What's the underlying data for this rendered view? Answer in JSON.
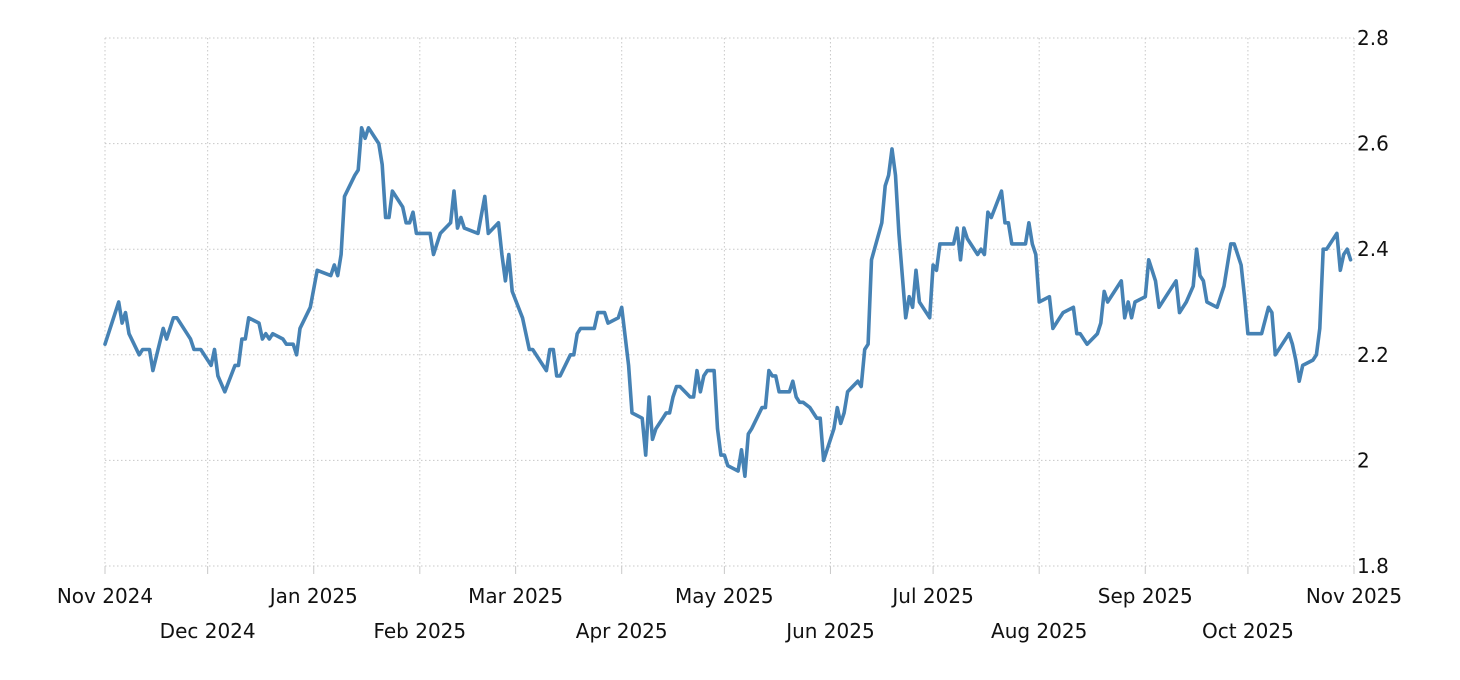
{
  "chart_data": {
    "type": "line",
    "title": "",
    "xlabel": "",
    "ylabel": "",
    "ylim": [
      1.8,
      2.8
    ],
    "yticks": [
      "1.8",
      "2",
      "2.2",
      "2.4",
      "2.6",
      "2.8"
    ],
    "xlim": [
      "2024-11-01",
      "2025-11-01"
    ],
    "xticks": [
      {
        "date": "2024-11-01",
        "label": "Nov 2024"
      },
      {
        "date": "2024-12-01",
        "label": "Dec 2024"
      },
      {
        "date": "2025-01-01",
        "label": "Jan 2025"
      },
      {
        "date": "2025-02-01",
        "label": "Feb 2025"
      },
      {
        "date": "2025-03-01",
        "label": "Mar 2025"
      },
      {
        "date": "2025-04-01",
        "label": "Apr 2025"
      },
      {
        "date": "2025-05-01",
        "label": "May 2025"
      },
      {
        "date": "2025-06-01",
        "label": "Jun 2025"
      },
      {
        "date": "2025-07-01",
        "label": "Jul 2025"
      },
      {
        "date": "2025-08-01",
        "label": "Aug 2025"
      },
      {
        "date": "2025-09-01",
        "label": "Sep 2025"
      },
      {
        "date": "2025-10-01",
        "label": "Oct 2025"
      },
      {
        "date": "2025-11-01",
        "label": "Nov 2025"
      }
    ],
    "grid": true,
    "y_axis_side": "right",
    "line_color": "#4682b4",
    "series": [
      {
        "points": [
          [
            "2024-11-01",
            2.22
          ],
          [
            "2024-11-05",
            2.3
          ],
          [
            "2024-11-06",
            2.26
          ],
          [
            "2024-11-07",
            2.28
          ],
          [
            "2024-11-08",
            2.24
          ],
          [
            "2024-11-11",
            2.2
          ],
          [
            "2024-11-12",
            2.21
          ],
          [
            "2024-11-14",
            2.21
          ],
          [
            "2024-11-15",
            2.17
          ],
          [
            "2024-11-18",
            2.25
          ],
          [
            "2024-11-19",
            2.23
          ],
          [
            "2024-11-21",
            2.27
          ],
          [
            "2024-11-22",
            2.27
          ],
          [
            "2024-11-25",
            2.24
          ],
          [
            "2024-11-26",
            2.23
          ],
          [
            "2024-11-27",
            2.21
          ],
          [
            "2024-11-29",
            2.21
          ],
          [
            "2024-12-02",
            2.18
          ],
          [
            "2024-12-03",
            2.21
          ],
          [
            "2024-12-04",
            2.16
          ],
          [
            "2024-12-06",
            2.13
          ],
          [
            "2024-12-09",
            2.18
          ],
          [
            "2024-12-10",
            2.18
          ],
          [
            "2024-12-11",
            2.23
          ],
          [
            "2024-12-12",
            2.23
          ],
          [
            "2024-12-13",
            2.27
          ],
          [
            "2024-12-16",
            2.26
          ],
          [
            "2024-12-17",
            2.23
          ],
          [
            "2024-12-18",
            2.24
          ],
          [
            "2024-12-19",
            2.23
          ],
          [
            "2024-12-20",
            2.24
          ],
          [
            "2024-12-23",
            2.23
          ],
          [
            "2024-12-24",
            2.22
          ],
          [
            "2024-12-26",
            2.22
          ],
          [
            "2024-12-27",
            2.2
          ],
          [
            "2024-12-28",
            2.25
          ],
          [
            "2024-12-31",
            2.29
          ],
          [
            "2025-01-02",
            2.36
          ],
          [
            "2025-01-06",
            2.35
          ],
          [
            "2025-01-07",
            2.37
          ],
          [
            "2025-01-08",
            2.35
          ],
          [
            "2025-01-09",
            2.39
          ],
          [
            "2025-01-10",
            2.5
          ],
          [
            "2025-01-13",
            2.54
          ],
          [
            "2025-01-14",
            2.55
          ],
          [
            "2025-01-15",
            2.63
          ],
          [
            "2025-01-16",
            2.61
          ],
          [
            "2025-01-17",
            2.63
          ],
          [
            "2025-01-20",
            2.6
          ],
          [
            "2025-01-21",
            2.56
          ],
          [
            "2025-01-22",
            2.46
          ],
          [
            "2025-01-23",
            2.46
          ],
          [
            "2025-01-24",
            2.51
          ],
          [
            "2025-01-27",
            2.48
          ],
          [
            "2025-01-28",
            2.45
          ],
          [
            "2025-01-29",
            2.45
          ],
          [
            "2025-01-30",
            2.47
          ],
          [
            "2025-01-31",
            2.43
          ],
          [
            "2025-02-03",
            2.43
          ],
          [
            "2025-02-04",
            2.43
          ],
          [
            "2025-02-05",
            2.39
          ],
          [
            "2025-02-06",
            2.41
          ],
          [
            "2025-02-07",
            2.43
          ],
          [
            "2025-02-10",
            2.45
          ],
          [
            "2025-02-11",
            2.51
          ],
          [
            "2025-02-12",
            2.44
          ],
          [
            "2025-02-13",
            2.46
          ],
          [
            "2025-02-14",
            2.44
          ],
          [
            "2025-02-18",
            2.43
          ],
          [
            "2025-02-20",
            2.5
          ],
          [
            "2025-02-21",
            2.43
          ],
          [
            "2025-02-24",
            2.45
          ],
          [
            "2025-02-25",
            2.39
          ],
          [
            "2025-02-26",
            2.34
          ],
          [
            "2025-02-27",
            2.39
          ],
          [
            "2025-02-28",
            2.32
          ],
          [
            "2025-03-03",
            2.27
          ],
          [
            "2025-03-05",
            2.21
          ],
          [
            "2025-03-06",
            2.21
          ],
          [
            "2025-03-10",
            2.17
          ],
          [
            "2025-03-11",
            2.21
          ],
          [
            "2025-03-12",
            2.21
          ],
          [
            "2025-03-13",
            2.16
          ],
          [
            "2025-03-14",
            2.16
          ],
          [
            "2025-03-17",
            2.2
          ],
          [
            "2025-03-18",
            2.2
          ],
          [
            "2025-03-19",
            2.24
          ],
          [
            "2025-03-20",
            2.25
          ],
          [
            "2025-03-21",
            2.25
          ],
          [
            "2025-03-24",
            2.25
          ],
          [
            "2025-03-25",
            2.28
          ],
          [
            "2025-03-26",
            2.28
          ],
          [
            "2025-03-27",
            2.28
          ],
          [
            "2025-03-28",
            2.26
          ],
          [
            "2025-03-31",
            2.27
          ],
          [
            "2025-04-01",
            2.29
          ],
          [
            "2025-04-03",
            2.18
          ],
          [
            "2025-04-04",
            2.09
          ],
          [
            "2025-04-07",
            2.08
          ],
          [
            "2025-04-08",
            2.01
          ],
          [
            "2025-04-09",
            2.12
          ],
          [
            "2025-04-10",
            2.04
          ],
          [
            "2025-04-11",
            2.06
          ],
          [
            "2025-04-13",
            2.08
          ],
          [
            "2025-04-14",
            2.09
          ],
          [
            "2025-04-15",
            2.09
          ],
          [
            "2025-04-16",
            2.12
          ],
          [
            "2025-04-17",
            2.14
          ],
          [
            "2025-04-18",
            2.14
          ],
          [
            "2025-04-21",
            2.12
          ],
          [
            "2025-04-22",
            2.12
          ],
          [
            "2025-04-23",
            2.17
          ],
          [
            "2025-04-24",
            2.13
          ],
          [
            "2025-04-25",
            2.16
          ],
          [
            "2025-04-26",
            2.17
          ],
          [
            "2025-04-28",
            2.17
          ],
          [
            "2025-04-29",
            2.06
          ],
          [
            "2025-04-30",
            2.01
          ],
          [
            "2025-05-01",
            2.01
          ],
          [
            "2025-05-02",
            1.99
          ],
          [
            "2025-05-05",
            1.98
          ],
          [
            "2025-05-06",
            2.02
          ],
          [
            "2025-05-07",
            1.97
          ],
          [
            "2025-05-08",
            2.05
          ],
          [
            "2025-05-09",
            2.06
          ],
          [
            "2025-05-12",
            2.1
          ],
          [
            "2025-05-13",
            2.1
          ],
          [
            "2025-05-14",
            2.17
          ],
          [
            "2025-05-15",
            2.16
          ],
          [
            "2025-05-16",
            2.16
          ],
          [
            "2025-05-17",
            2.13
          ],
          [
            "2025-05-20",
            2.13
          ],
          [
            "2025-05-21",
            2.15
          ],
          [
            "2025-05-22",
            2.12
          ],
          [
            "2025-05-23",
            2.11
          ],
          [
            "2025-05-24",
            2.11
          ],
          [
            "2025-05-26",
            2.1
          ],
          [
            "2025-05-27",
            2.09
          ],
          [
            "2025-05-28",
            2.08
          ],
          [
            "2025-05-29",
            2.08
          ],
          [
            "2025-05-30",
            2.0
          ],
          [
            "2025-06-02",
            2.06
          ],
          [
            "2025-06-03",
            2.1
          ],
          [
            "2025-06-04",
            2.07
          ],
          [
            "2025-06-05",
            2.09
          ],
          [
            "2025-06-06",
            2.13
          ],
          [
            "2025-06-09",
            2.15
          ],
          [
            "2025-06-10",
            2.14
          ],
          [
            "2025-06-11",
            2.21
          ],
          [
            "2025-06-12",
            2.22
          ],
          [
            "2025-06-13",
            2.38
          ],
          [
            "2025-06-16",
            2.45
          ],
          [
            "2025-06-17",
            2.52
          ],
          [
            "2025-06-18",
            2.54
          ],
          [
            "2025-06-19",
            2.59
          ],
          [
            "2025-06-20",
            2.54
          ],
          [
            "2025-06-21",
            2.43
          ],
          [
            "2025-06-23",
            2.27
          ],
          [
            "2025-06-24",
            2.31
          ],
          [
            "2025-06-25",
            2.29
          ],
          [
            "2025-06-26",
            2.36
          ],
          [
            "2025-06-27",
            2.3
          ],
          [
            "2025-06-30",
            2.27
          ],
          [
            "2025-07-01",
            2.37
          ],
          [
            "2025-07-02",
            2.36
          ],
          [
            "2025-07-03",
            2.41
          ],
          [
            "2025-07-07",
            2.41
          ],
          [
            "2025-07-08",
            2.44
          ],
          [
            "2025-07-09",
            2.38
          ],
          [
            "2025-07-10",
            2.44
          ],
          [
            "2025-07-11",
            2.42
          ],
          [
            "2025-07-14",
            2.39
          ],
          [
            "2025-07-15",
            2.4
          ],
          [
            "2025-07-16",
            2.39
          ],
          [
            "2025-07-17",
            2.47
          ],
          [
            "2025-07-18",
            2.46
          ],
          [
            "2025-07-21",
            2.51
          ],
          [
            "2025-07-22",
            2.45
          ],
          [
            "2025-07-23",
            2.45
          ],
          [
            "2025-07-24",
            2.41
          ],
          [
            "2025-07-28",
            2.41
          ],
          [
            "2025-07-29",
            2.45
          ],
          [
            "2025-07-30",
            2.41
          ],
          [
            "2025-07-31",
            2.39
          ],
          [
            "2025-08-01",
            2.3
          ],
          [
            "2025-08-04",
            2.31
          ],
          [
            "2025-08-05",
            2.25
          ],
          [
            "2025-08-06",
            2.26
          ],
          [
            "2025-08-07",
            2.27
          ],
          [
            "2025-08-08",
            2.28
          ],
          [
            "2025-08-11",
            2.29
          ],
          [
            "2025-08-12",
            2.24
          ],
          [
            "2025-08-13",
            2.24
          ],
          [
            "2025-08-15",
            2.22
          ],
          [
            "2025-08-18",
            2.24
          ],
          [
            "2025-08-19",
            2.26
          ],
          [
            "2025-08-20",
            2.32
          ],
          [
            "2025-08-21",
            2.3
          ],
          [
            "2025-08-25",
            2.34
          ],
          [
            "2025-08-26",
            2.27
          ],
          [
            "2025-08-27",
            2.3
          ],
          [
            "2025-08-28",
            2.27
          ],
          [
            "2025-08-29",
            2.3
          ],
          [
            "2025-09-01",
            2.31
          ],
          [
            "2025-09-02",
            2.38
          ],
          [
            "2025-09-03",
            2.36
          ],
          [
            "2025-09-04",
            2.34
          ],
          [
            "2025-09-05",
            2.29
          ],
          [
            "2025-09-07",
            2.31
          ],
          [
            "2025-09-09",
            2.33
          ],
          [
            "2025-09-10",
            2.34
          ],
          [
            "2025-09-11",
            2.28
          ],
          [
            "2025-09-13",
            2.3
          ],
          [
            "2025-09-15",
            2.33
          ],
          [
            "2025-09-16",
            2.4
          ],
          [
            "2025-09-17",
            2.35
          ],
          [
            "2025-09-18",
            2.34
          ],
          [
            "2025-09-19",
            2.3
          ],
          [
            "2025-09-22",
            2.29
          ],
          [
            "2025-09-24",
            2.33
          ],
          [
            "2025-09-25",
            2.37
          ],
          [
            "2025-09-26",
            2.41
          ],
          [
            "2025-09-27",
            2.41
          ],
          [
            "2025-09-29",
            2.37
          ],
          [
            "2025-09-30",
            2.31
          ],
          [
            "2025-10-01",
            2.24
          ],
          [
            "2025-10-02",
            2.24
          ],
          [
            "2025-10-05",
            2.24
          ],
          [
            "2025-10-07",
            2.29
          ],
          [
            "2025-10-08",
            2.28
          ],
          [
            "2025-10-09",
            2.2
          ],
          [
            "2025-10-13",
            2.24
          ],
          [
            "2025-10-14",
            2.22
          ],
          [
            "2025-10-15",
            2.19
          ],
          [
            "2025-10-16",
            2.15
          ],
          [
            "2025-10-17",
            2.18
          ],
          [
            "2025-10-20",
            2.19
          ],
          [
            "2025-10-21",
            2.2
          ],
          [
            "2025-10-22",
            2.25
          ],
          [
            "2025-10-23",
            2.4
          ],
          [
            "2025-10-24",
            2.4
          ],
          [
            "2025-10-27",
            2.43
          ],
          [
            "2025-10-28",
            2.36
          ],
          [
            "2025-10-29",
            2.39
          ],
          [
            "2025-10-30",
            2.4
          ],
          [
            "2025-10-31",
            2.38
          ]
        ]
      }
    ]
  }
}
